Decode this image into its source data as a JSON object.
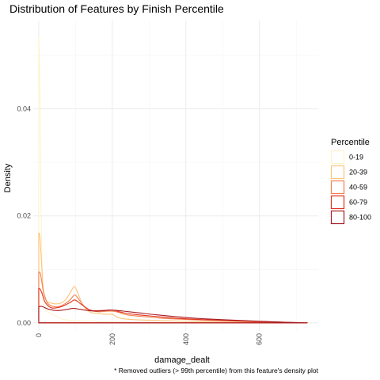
{
  "chart_data": {
    "type": "area",
    "title": "Distribution of Features by Finish Percentile",
    "xlabel": "damage_dealt",
    "ylabel": "Density",
    "caption": "* Removed outliers (> 99th percentile) from this feature's density plot",
    "xlim": [
      -15,
      760
    ],
    "ylim": [
      -0.0015,
      0.0565
    ],
    "x_ticks": [
      0,
      200,
      400,
      600
    ],
    "x_tick_labels": [
      "0",
      "200",
      "400",
      "600"
    ],
    "y_ticks": [
      0,
      0.02,
      0.04
    ],
    "y_tick_labels": [
      "0.00",
      "0.02",
      "0.04"
    ],
    "grid": true,
    "legend": {
      "title": "Percentile",
      "position": "right"
    },
    "series": [
      {
        "name": "0-19",
        "color": "#fff3cc",
        "points": [
          [
            0,
            0.0535
          ],
          [
            3,
            0.045
          ],
          [
            6,
            0.022
          ],
          [
            10,
            0.007
          ],
          [
            15,
            0.003
          ],
          [
            25,
            0.002
          ],
          [
            40,
            0.0015
          ],
          [
            60,
            0.0008
          ],
          [
            80,
            0.0005
          ],
          [
            100,
            0.0004
          ],
          [
            150,
            0.0003
          ],
          [
            200,
            0.0002
          ],
          [
            300,
            0.0001
          ],
          [
            400,
            5e-05
          ],
          [
            500,
            3e-05
          ],
          [
            600,
            2e-05
          ],
          [
            730,
            0.0
          ]
        ]
      },
      {
        "name": "20-39",
        "color": "#fdc47a",
        "points": [
          [
            0,
            0.0168
          ],
          [
            3,
            0.0162
          ],
          [
            7,
            0.012
          ],
          [
            12,
            0.0065
          ],
          [
            20,
            0.0042
          ],
          [
            40,
            0.0036
          ],
          [
            60,
            0.0037
          ],
          [
            75,
            0.0045
          ],
          [
            90,
            0.0062
          ],
          [
            97,
            0.0068
          ],
          [
            105,
            0.0058
          ],
          [
            120,
            0.0033
          ],
          [
            140,
            0.002
          ],
          [
            160,
            0.0018
          ],
          [
            180,
            0.0016
          ],
          [
            200,
            0.0016
          ],
          [
            220,
            0.0009
          ],
          [
            260,
            0.0006
          ],
          [
            300,
            0.0005
          ],
          [
            350,
            0.0004
          ],
          [
            400,
            0.0003
          ],
          [
            450,
            0.0002
          ],
          [
            500,
            0.00015
          ],
          [
            600,
            8e-05
          ],
          [
            730,
            0.0
          ]
        ]
      },
      {
        "name": "40-59",
        "color": "#f47f4b",
        "points": [
          [
            0,
            0.0095
          ],
          [
            4,
            0.0093
          ],
          [
            8,
            0.0078
          ],
          [
            14,
            0.0055
          ],
          [
            25,
            0.0036
          ],
          [
            45,
            0.003
          ],
          [
            65,
            0.0033
          ],
          [
            85,
            0.0043
          ],
          [
            98,
            0.0052
          ],
          [
            110,
            0.0043
          ],
          [
            130,
            0.0027
          ],
          [
            160,
            0.0021
          ],
          [
            190,
            0.0022
          ],
          [
            210,
            0.0021
          ],
          [
            240,
            0.0015
          ],
          [
            280,
            0.0012
          ],
          [
            330,
            0.0009
          ],
          [
            380,
            0.0007
          ],
          [
            450,
            0.0005
          ],
          [
            550,
            0.0003
          ],
          [
            650,
            0.0001
          ],
          [
            730,
            0.0
          ]
        ]
      },
      {
        "name": "60-79",
        "color": "#e0321d",
        "points": [
          [
            0,
            0.0064
          ],
          [
            4,
            0.0063
          ],
          [
            9,
            0.0055
          ],
          [
            18,
            0.0038
          ],
          [
            35,
            0.0028
          ],
          [
            60,
            0.003
          ],
          [
            85,
            0.0038
          ],
          [
            98,
            0.0043
          ],
          [
            115,
            0.0035
          ],
          [
            140,
            0.0024
          ],
          [
            170,
            0.0023
          ],
          [
            200,
            0.0024
          ],
          [
            230,
            0.0019
          ],
          [
            270,
            0.0015
          ],
          [
            320,
            0.0012
          ],
          [
            370,
            0.0009
          ],
          [
            450,
            0.0006
          ],
          [
            550,
            0.00035
          ],
          [
            650,
            0.00015
          ],
          [
            730,
            0.0
          ]
        ]
      },
      {
        "name": "80-100",
        "color": "#a81c24",
        "points": [
          [
            0,
            0.003
          ],
          [
            5,
            0.0031
          ],
          [
            12,
            0.003
          ],
          [
            25,
            0.0026
          ],
          [
            50,
            0.0023
          ],
          [
            75,
            0.0025
          ],
          [
            95,
            0.0027
          ],
          [
            115,
            0.0025
          ],
          [
            150,
            0.0022
          ],
          [
            180,
            0.0023
          ],
          [
            200,
            0.0024
          ],
          [
            230,
            0.0022
          ],
          [
            270,
            0.0019
          ],
          [
            320,
            0.0015
          ],
          [
            370,
            0.0012
          ],
          [
            420,
            0.0009
          ],
          [
            500,
            0.0006
          ],
          [
            600,
            0.0003
          ],
          [
            680,
            0.0001
          ],
          [
            730,
            0.0
          ]
        ]
      }
    ]
  }
}
